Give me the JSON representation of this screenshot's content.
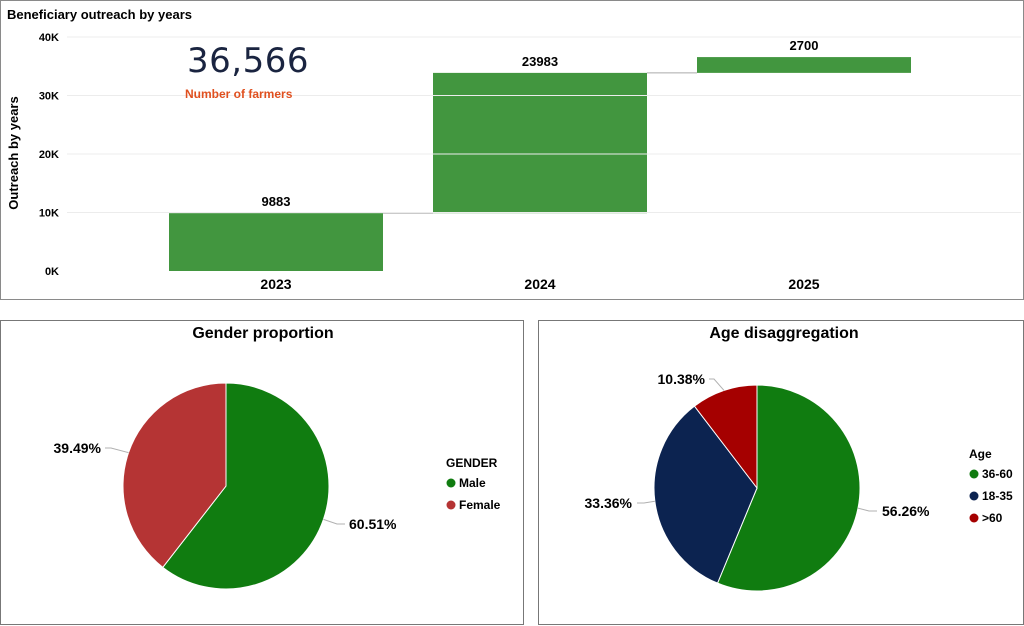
{
  "kpi": {
    "value": "36,566",
    "label": "Number of farmers"
  },
  "colors": {
    "green": "#42963F",
    "gender_male": "#107C10",
    "gender_female": "#B53434",
    "age_36_60": "#107C10",
    "age_18_35": "#0C2350",
    "age_gt60": "#A50000",
    "kpi_label": "#E0501F"
  },
  "chart_data": [
    {
      "type": "bar",
      "subtype": "waterfall",
      "title": "Beneficiary outreach by years",
      "ylabel": "Outreach by years",
      "categories": [
        "2023",
        "2024",
        "2025"
      ],
      "values": [
        9883,
        23983,
        2700
      ],
      "labels": [
        "9883",
        "23983",
        "2700"
      ],
      "yticks": [
        "0K",
        "10K",
        "20K",
        "30K",
        "40K"
      ],
      "ylim": [
        0,
        40000
      ],
      "grid": true
    },
    {
      "type": "pie",
      "title": "Gender proportion",
      "legend_title": "GENDER",
      "legend_position": "right",
      "series": [
        {
          "name": "Male",
          "value": 60.51,
          "label": "60.51%"
        },
        {
          "name": "Female",
          "value": 39.49,
          "label": "39.49%"
        }
      ]
    },
    {
      "type": "pie",
      "title": "Age disaggregation",
      "legend_title": "Age",
      "legend_position": "right",
      "series": [
        {
          "name": "36-60",
          "value": 56.26,
          "label": "56.26%"
        },
        {
          "name": "18-35",
          "value": 33.36,
          "label": "33.36%"
        },
        {
          "name": ">60",
          "value": 10.38,
          "label": "10.38%"
        }
      ]
    }
  ]
}
